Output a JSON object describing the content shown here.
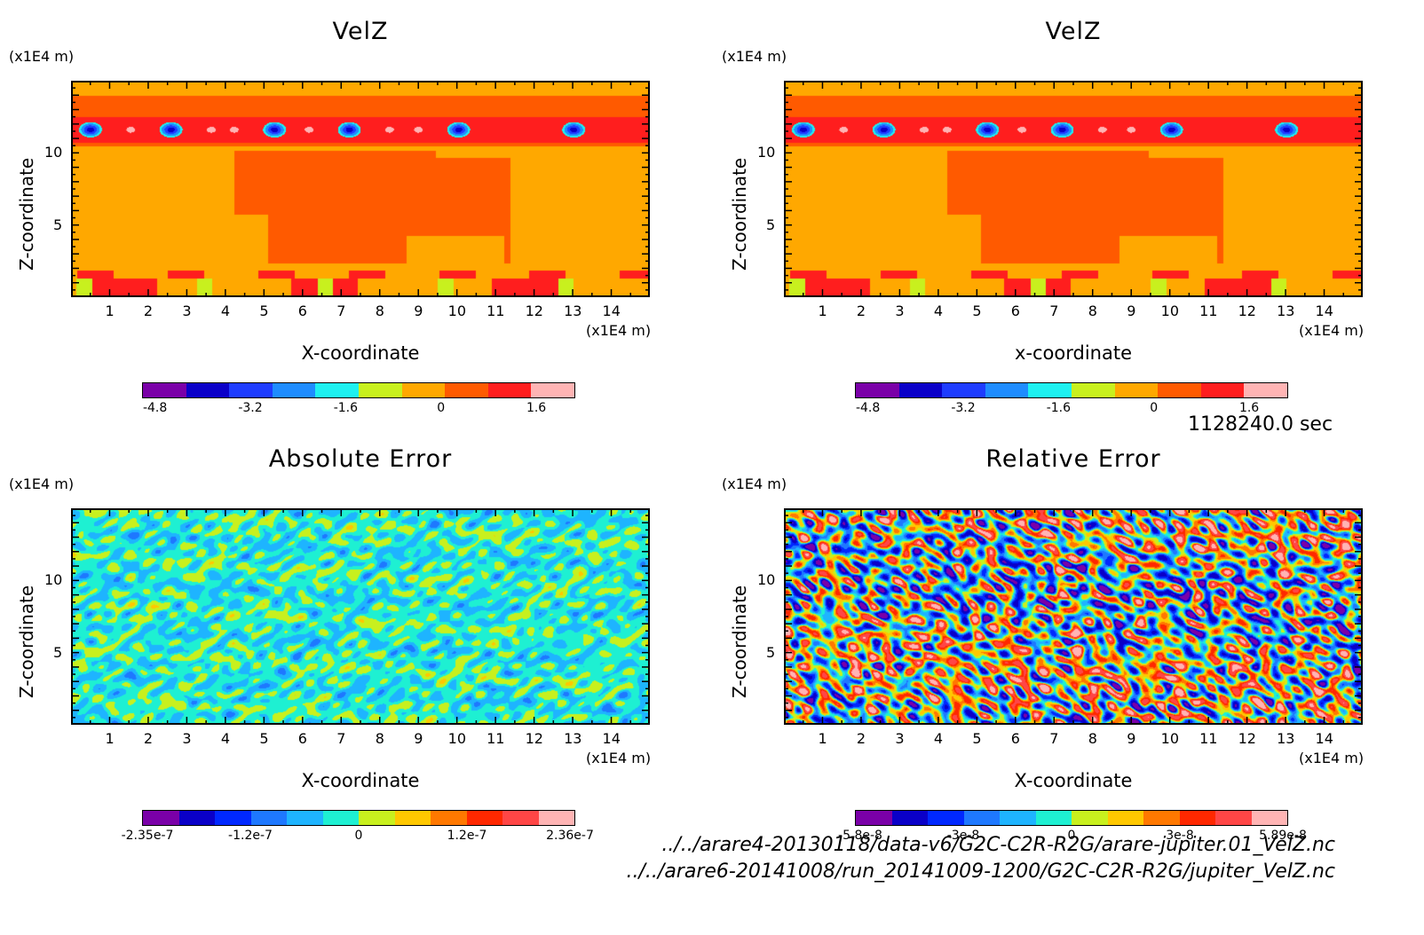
{
  "time_label": "1128240.0 sec",
  "files": [
    "../../arare4-20130118/data-v6/G2C-C2R-R2G/arare-jupiter.01_VelZ.nc",
    "../../arare6-20141008/run_20141009-1200/G2C-C2R-R2G/jupiter_VelZ.nc"
  ],
  "chart_data": [
    {
      "type": "heatmap",
      "title": "VelZ",
      "xlabel": "X-coordinate",
      "ylabel": "Z-coordinate",
      "x_unit": "(x1E4 m)",
      "y_unit": "(x1E4 m)",
      "xlim": [
        0,
        15
      ],
      "ylim": [
        0,
        15
      ],
      "xticks": [
        "1",
        "2",
        "3",
        "4",
        "5",
        "6",
        "7",
        "8",
        "9",
        "10",
        "11",
        "12",
        "13",
        "14"
      ],
      "yticks": [
        "5",
        "10"
      ],
      "colorbar_colors": [
        "#7a00a8",
        "#0a00c8",
        "#1e3cff",
        "#1e8cff",
        "#1ef0f0",
        "#c8f01e",
        "#ffa800",
        "#ff5a00",
        "#ff1e1e",
        "#ffb4b4"
      ],
      "colorbar_ticks": [
        "-4.8",
        "-3.2",
        "-1.6",
        "0",
        "1.6"
      ]
    },
    {
      "type": "heatmap",
      "title": "VelZ",
      "xlabel": "x-coordinate",
      "ylabel": "Z-coordinate",
      "x_unit": "(x1E4 m)",
      "y_unit": "(x1E4 m)",
      "xlim": [
        0,
        15
      ],
      "ylim": [
        0,
        15
      ],
      "xticks": [
        "1",
        "2",
        "3",
        "4",
        "5",
        "6",
        "7",
        "8",
        "9",
        "10",
        "11",
        "12",
        "13",
        "14"
      ],
      "yticks": [
        "5",
        "10"
      ],
      "colorbar_colors": [
        "#7a00a8",
        "#0a00c8",
        "#1e3cff",
        "#1e8cff",
        "#1ef0f0",
        "#c8f01e",
        "#ffa800",
        "#ff5a00",
        "#ff1e1e",
        "#ffb4b4"
      ],
      "colorbar_ticks": [
        "-4.8",
        "-3.2",
        "-1.6",
        "0",
        "1.6"
      ]
    },
    {
      "type": "heatmap",
      "title": "Absolute Error",
      "xlabel": "X-coordinate",
      "ylabel": "Z-coordinate",
      "x_unit": "(x1E4 m)",
      "y_unit": "(x1E4 m)",
      "xlim": [
        0,
        15
      ],
      "ylim": [
        0,
        15
      ],
      "xticks": [
        "1",
        "2",
        "3",
        "4",
        "5",
        "6",
        "7",
        "8",
        "9",
        "10",
        "11",
        "12",
        "13",
        "14"
      ],
      "yticks": [
        "5",
        "10"
      ],
      "colorbar_colors": [
        "#7a00a8",
        "#0a00c8",
        "#0028ff",
        "#1e78ff",
        "#1eb4ff",
        "#1ef0d2",
        "#c8f01e",
        "#ffc800",
        "#ff7800",
        "#ff2800",
        "#ff4646",
        "#ffb4b4"
      ],
      "colorbar_ticks": [
        "-2.35e-7",
        "-1.2e-7",
        "0",
        "1.2e-7",
        "2.36e-7"
      ]
    },
    {
      "type": "heatmap",
      "title": "Relative Error",
      "xlabel": "X-coordinate",
      "ylabel": "Z-coordinate",
      "x_unit": "(x1E4 m)",
      "y_unit": "(x1E4 m)",
      "xlim": [
        0,
        15
      ],
      "ylim": [
        0,
        15
      ],
      "xticks": [
        "1",
        "2",
        "3",
        "4",
        "5",
        "6",
        "7",
        "8",
        "9",
        "10",
        "11",
        "12",
        "13",
        "14"
      ],
      "yticks": [
        "5",
        "10"
      ],
      "colorbar_colors": [
        "#7a00a8",
        "#0a00c8",
        "#0028ff",
        "#1e78ff",
        "#1eb4ff",
        "#1ef0d2",
        "#c8f01e",
        "#ffc800",
        "#ff7800",
        "#ff2800",
        "#ff4646",
        "#ffb4b4"
      ],
      "colorbar_ticks": [
        "-5.8e-8",
        "-3e-8",
        "0",
        "3e-8",
        "5.89e-8"
      ]
    }
  ]
}
